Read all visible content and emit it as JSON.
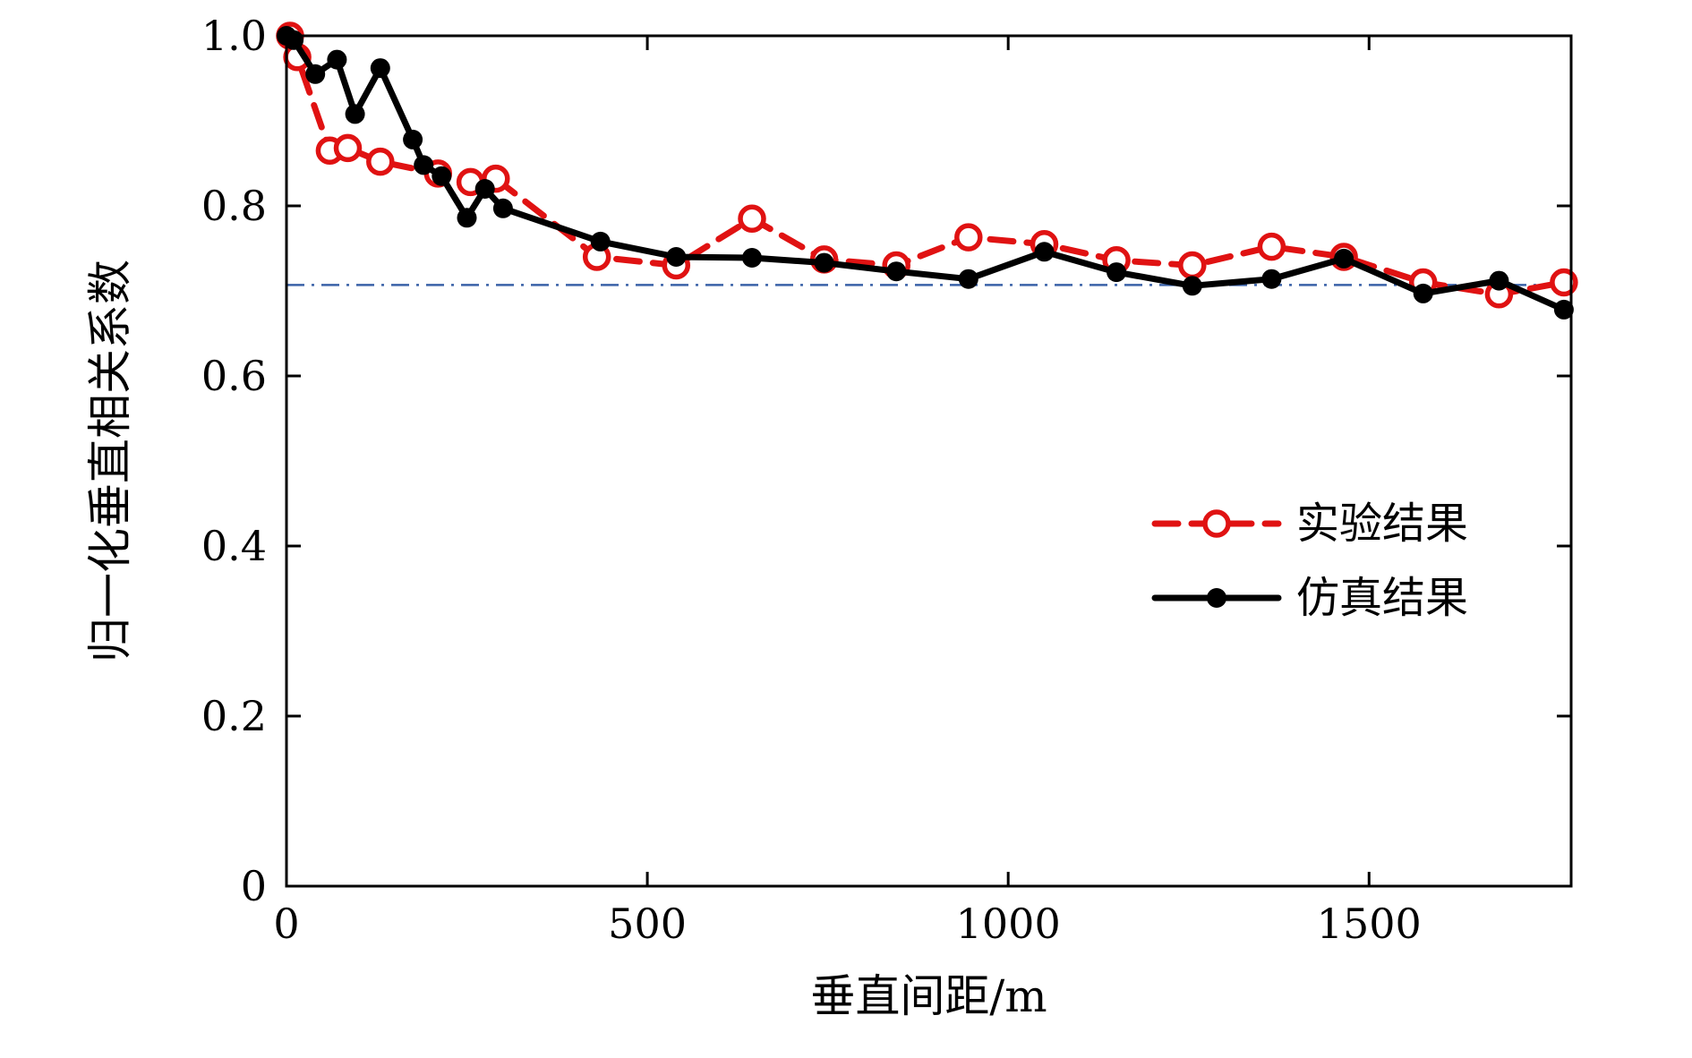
{
  "chart_data": {
    "type": "line",
    "title": "",
    "xlabel": "垂直间距/m",
    "ylabel": "归一化垂直相关系数",
    "xlim": [
      0,
      1780
    ],
    "ylim": [
      0,
      1.0
    ],
    "xticks": [
      0,
      500,
      1000,
      1500
    ],
    "xtick_labels": [
      "0",
      "500",
      "1000",
      "1500"
    ],
    "yticks": [
      0,
      0.2,
      0.4,
      0.6,
      0.8,
      1.0
    ],
    "ytick_labels": [
      "0",
      "0.2",
      "0.4",
      "0.6",
      "0.8",
      "1.0"
    ],
    "grid": false,
    "legend_position": "center-right",
    "reference_line": {
      "y": 0.707,
      "color": "#3a62a8",
      "style": "dash-dot"
    },
    "series": [
      {
        "id": "experimental",
        "name": "实验结果",
        "color": "#e01212",
        "line_style": "dashed",
        "marker": "open-circle",
        "points": [
          [
            5,
            1.0
          ],
          [
            15,
            0.975
          ],
          [
            60,
            0.865
          ],
          [
            85,
            0.868
          ],
          [
            130,
            0.852
          ],
          [
            210,
            0.838
          ],
          [
            255,
            0.828
          ],
          [
            290,
            0.832
          ],
          [
            430,
            0.74
          ],
          [
            540,
            0.73
          ],
          [
            645,
            0.785
          ],
          [
            745,
            0.737
          ],
          [
            845,
            0.73
          ],
          [
            945,
            0.763
          ],
          [
            1050,
            0.755
          ],
          [
            1150,
            0.736
          ],
          [
            1255,
            0.73
          ],
          [
            1365,
            0.752
          ],
          [
            1465,
            0.74
          ],
          [
            1575,
            0.71
          ],
          [
            1680,
            0.696
          ],
          [
            1770,
            0.71
          ]
        ]
      },
      {
        "id": "simulation",
        "name": "仿真结果",
        "color": "#000000",
        "line_style": "solid",
        "marker": "filled-circle",
        "points": [
          [
            0,
            1.0
          ],
          [
            10,
            0.995
          ],
          [
            40,
            0.955
          ],
          [
            70,
            0.972
          ],
          [
            95,
            0.908
          ],
          [
            130,
            0.962
          ],
          [
            175,
            0.878
          ],
          [
            190,
            0.848
          ],
          [
            215,
            0.835
          ],
          [
            250,
            0.786
          ],
          [
            275,
            0.82
          ],
          [
            300,
            0.797
          ],
          [
            435,
            0.758
          ],
          [
            540,
            0.74
          ],
          [
            645,
            0.739
          ],
          [
            745,
            0.733
          ],
          [
            845,
            0.723
          ],
          [
            945,
            0.714
          ],
          [
            1050,
            0.746
          ],
          [
            1150,
            0.722
          ],
          [
            1255,
            0.706
          ],
          [
            1365,
            0.714
          ],
          [
            1465,
            0.738
          ],
          [
            1575,
            0.697
          ],
          [
            1680,
            0.712
          ],
          [
            1770,
            0.678
          ]
        ]
      }
    ]
  }
}
